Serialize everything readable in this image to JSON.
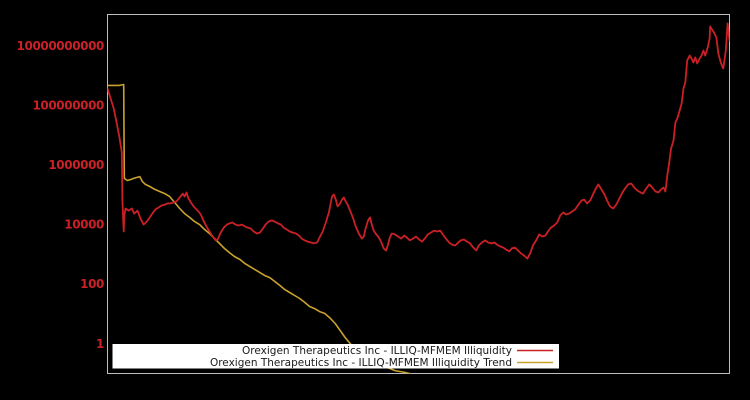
{
  "window": {
    "title": "",
    "background": "#000000"
  },
  "colors": {
    "background": "#000000",
    "plot_border": "#bdbdbd",
    "axis_label": "#cb2026",
    "illiquidity_line": "#cb2026",
    "trend_line": "#c9a22e",
    "legend_background": "#ffffff",
    "legend_text": "#1a1a1a"
  },
  "chart_data": {
    "type": "line",
    "title": "",
    "xlabel": "",
    "ylabel": "",
    "x_axis": {
      "tick_labels": [],
      "note": "no x-axis tick labels visible; x stored as fraction 0-1 of plot width"
    },
    "y_axis": {
      "scale": "log10",
      "tick_labels": [
        "10000000000",
        "100000000",
        "1000000",
        "10000",
        "100",
        "1"
      ],
      "tick_exponents": [
        10,
        8,
        6,
        4,
        2,
        0
      ],
      "range_log10": [
        -1.02,
        11.03
      ]
    },
    "legend": {
      "position": "bottom-center",
      "background": "#ffffff"
    },
    "point_format": "[x_fraction_0to1, log10_of_value]",
    "series": [
      {
        "name": "Orexigen Therapeutics Inc - ILLIQ-MFMEM Illiquidity",
        "color": "#cb2026",
        "width": 1.8,
        "points": [
          [
            0,
            8.56
          ],
          [
            0.005,
            8.22
          ],
          [
            0.01,
            7.89
          ],
          [
            0.014,
            7.48
          ],
          [
            0.019,
            6.95
          ],
          [
            0.023,
            6.41
          ],
          [
            0.024,
            4.8
          ],
          [
            0.026,
            3.76
          ],
          [
            0.027,
            4.3
          ],
          [
            0.029,
            4.53
          ],
          [
            0.034,
            4.46
          ],
          [
            0.039,
            4.53
          ],
          [
            0.043,
            4.36
          ],
          [
            0.048,
            4.46
          ],
          [
            0.053,
            4.19
          ],
          [
            0.058,
            3.99
          ],
          [
            0.063,
            4.09
          ],
          [
            0.068,
            4.23
          ],
          [
            0.072,
            4.36
          ],
          [
            0.077,
            4.5
          ],
          [
            0.082,
            4.56
          ],
          [
            0.087,
            4.63
          ],
          [
            0.092,
            4.66
          ],
          [
            0.097,
            4.7
          ],
          [
            0.101,
            4.7
          ],
          [
            0.106,
            4.73
          ],
          [
            0.111,
            4.77
          ],
          [
            0.116,
            4.9
          ],
          [
            0.121,
            5.03
          ],
          [
            0.124,
            4.93
          ],
          [
            0.127,
            5.07
          ],
          [
            0.13,
            4.87
          ],
          [
            0.135,
            4.7
          ],
          [
            0.14,
            4.56
          ],
          [
            0.145,
            4.46
          ],
          [
            0.15,
            4.33
          ],
          [
            0.155,
            4.09
          ],
          [
            0.159,
            3.93
          ],
          [
            0.164,
            3.76
          ],
          [
            0.169,
            3.59
          ],
          [
            0.174,
            3.46
          ],
          [
            0.177,
            3.49
          ],
          [
            0.182,
            3.72
          ],
          [
            0.187,
            3.89
          ],
          [
            0.192,
            3.99
          ],
          [
            0.196,
            4.03
          ],
          [
            0.201,
            4.06
          ],
          [
            0.206,
            3.99
          ],
          [
            0.211,
            3.96
          ],
          [
            0.216,
            3.99
          ],
          [
            0.221,
            3.93
          ],
          [
            0.225,
            3.89
          ],
          [
            0.23,
            3.86
          ],
          [
            0.235,
            3.76
          ],
          [
            0.24,
            3.69
          ],
          [
            0.245,
            3.72
          ],
          [
            0.25,
            3.86
          ],
          [
            0.254,
            3.99
          ],
          [
            0.259,
            4.09
          ],
          [
            0.264,
            4.13
          ],
          [
            0.269,
            4.09
          ],
          [
            0.274,
            4.03
          ],
          [
            0.279,
            3.99
          ],
          [
            0.283,
            3.89
          ],
          [
            0.288,
            3.83
          ],
          [
            0.293,
            3.76
          ],
          [
            0.298,
            3.72
          ],
          [
            0.303,
            3.69
          ],
          [
            0.308,
            3.62
          ],
          [
            0.312,
            3.52
          ],
          [
            0.317,
            3.46
          ],
          [
            0.322,
            3.42
          ],
          [
            0.327,
            3.39
          ],
          [
            0.332,
            3.36
          ],
          [
            0.337,
            3.39
          ],
          [
            0.341,
            3.56
          ],
          [
            0.346,
            3.76
          ],
          [
            0.351,
            4.06
          ],
          [
            0.356,
            4.4
          ],
          [
            0.361,
            4.93
          ],
          [
            0.364,
            5.0
          ],
          [
            0.367,
            4.83
          ],
          [
            0.37,
            4.6
          ],
          [
            0.374,
            4.7
          ],
          [
            0.377,
            4.83
          ],
          [
            0.38,
            4.9
          ],
          [
            0.383,
            4.77
          ],
          [
            0.386,
            4.66
          ],
          [
            0.39,
            4.46
          ],
          [
            0.395,
            4.19
          ],
          [
            0.399,
            3.93
          ],
          [
            0.404,
            3.69
          ],
          [
            0.409,
            3.52
          ],
          [
            0.412,
            3.59
          ],
          [
            0.415,
            3.86
          ],
          [
            0.419,
            4.13
          ],
          [
            0.422,
            4.23
          ],
          [
            0.425,
            3.99
          ],
          [
            0.428,
            3.79
          ],
          [
            0.432,
            3.66
          ],
          [
            0.435,
            3.59
          ],
          [
            0.438,
            3.49
          ],
          [
            0.441,
            3.36
          ],
          [
            0.444,
            3.19
          ],
          [
            0.448,
            3.12
          ],
          [
            0.451,
            3.32
          ],
          [
            0.454,
            3.56
          ],
          [
            0.457,
            3.69
          ],
          [
            0.462,
            3.66
          ],
          [
            0.467,
            3.59
          ],
          [
            0.472,
            3.52
          ],
          [
            0.477,
            3.62
          ],
          [
            0.481,
            3.56
          ],
          [
            0.486,
            3.46
          ],
          [
            0.491,
            3.52
          ],
          [
            0.496,
            3.59
          ],
          [
            0.501,
            3.49
          ],
          [
            0.506,
            3.42
          ],
          [
            0.51,
            3.52
          ],
          [
            0.515,
            3.66
          ],
          [
            0.52,
            3.72
          ],
          [
            0.525,
            3.79
          ],
          [
            0.53,
            3.76
          ],
          [
            0.535,
            3.79
          ],
          [
            0.539,
            3.66
          ],
          [
            0.544,
            3.52
          ],
          [
            0.549,
            3.39
          ],
          [
            0.554,
            3.32
          ],
          [
            0.559,
            3.29
          ],
          [
            0.564,
            3.39
          ],
          [
            0.568,
            3.46
          ],
          [
            0.573,
            3.49
          ],
          [
            0.578,
            3.42
          ],
          [
            0.583,
            3.36
          ],
          [
            0.588,
            3.22
          ],
          [
            0.593,
            3.12
          ],
          [
            0.597,
            3.29
          ],
          [
            0.602,
            3.39
          ],
          [
            0.607,
            3.46
          ],
          [
            0.612,
            3.39
          ],
          [
            0.617,
            3.36
          ],
          [
            0.622,
            3.39
          ],
          [
            0.626,
            3.32
          ],
          [
            0.631,
            3.26
          ],
          [
            0.636,
            3.22
          ],
          [
            0.641,
            3.15
          ],
          [
            0.646,
            3.09
          ],
          [
            0.65,
            3.19
          ],
          [
            0.655,
            3.22
          ],
          [
            0.66,
            3.12
          ],
          [
            0.665,
            3.02
          ],
          [
            0.67,
            2.95
          ],
          [
            0.675,
            2.85
          ],
          [
            0.68,
            3.05
          ],
          [
            0.684,
            3.29
          ],
          [
            0.689,
            3.46
          ],
          [
            0.694,
            3.66
          ],
          [
            0.699,
            3.59
          ],
          [
            0.704,
            3.62
          ],
          [
            0.708,
            3.76
          ],
          [
            0.713,
            3.89
          ],
          [
            0.718,
            3.96
          ],
          [
            0.723,
            4.06
          ],
          [
            0.728,
            4.3
          ],
          [
            0.733,
            4.4
          ],
          [
            0.737,
            4.33
          ],
          [
            0.742,
            4.36
          ],
          [
            0.747,
            4.43
          ],
          [
            0.752,
            4.5
          ],
          [
            0.757,
            4.66
          ],
          [
            0.762,
            4.8
          ],
          [
            0.766,
            4.83
          ],
          [
            0.771,
            4.7
          ],
          [
            0.776,
            4.8
          ],
          [
            0.781,
            5.03
          ],
          [
            0.786,
            5.23
          ],
          [
            0.789,
            5.34
          ],
          [
            0.794,
            5.17
          ],
          [
            0.799,
            5.0
          ],
          [
            0.803,
            4.8
          ],
          [
            0.808,
            4.6
          ],
          [
            0.813,
            4.53
          ],
          [
            0.818,
            4.66
          ],
          [
            0.823,
            4.87
          ],
          [
            0.828,
            5.07
          ],
          [
            0.832,
            5.2
          ],
          [
            0.837,
            5.34
          ],
          [
            0.842,
            5.37
          ],
          [
            0.847,
            5.23
          ],
          [
            0.852,
            5.13
          ],
          [
            0.857,
            5.07
          ],
          [
            0.861,
            5.03
          ],
          [
            0.866,
            5.2
          ],
          [
            0.871,
            5.34
          ],
          [
            0.876,
            5.23
          ],
          [
            0.881,
            5.1
          ],
          [
            0.886,
            5.07
          ],
          [
            0.89,
            5.17
          ],
          [
            0.894,
            5.23
          ],
          [
            0.897,
            5.1
          ],
          [
            0.9,
            5.64
          ],
          [
            0.903,
            6.07
          ],
          [
            0.906,
            6.54
          ],
          [
            0.91,
            6.81
          ],
          [
            0.913,
            7.42
          ],
          [
            0.916,
            7.55
          ],
          [
            0.919,
            7.75
          ],
          [
            0.923,
            8.05
          ],
          [
            0.926,
            8.56
          ],
          [
            0.929,
            8.76
          ],
          [
            0.932,
            9.5
          ],
          [
            0.936,
            9.66
          ],
          [
            0.939,
            9.56
          ],
          [
            0.942,
            9.43
          ],
          [
            0.945,
            9.6
          ],
          [
            0.948,
            9.4
          ],
          [
            0.952,
            9.56
          ],
          [
            0.955,
            9.66
          ],
          [
            0.958,
            9.83
          ],
          [
            0.961,
            9.66
          ],
          [
            0.965,
            9.93
          ],
          [
            0.968,
            10.23
          ],
          [
            0.969,
            10.64
          ],
          [
            0.973,
            10.5
          ],
          [
            0.976,
            10.4
          ],
          [
            0.979,
            10.27
          ],
          [
            0.982,
            9.73
          ],
          [
            0.986,
            9.43
          ],
          [
            0.989,
            9.26
          ],
          [
            0.99,
            9.23
          ],
          [
            0.994,
            9.83
          ],
          [
            0.997,
            10.74
          ],
          [
            1.0,
            10.17
          ]
        ]
      },
      {
        "name": "Orexigen Therapeutics Inc - ILLIQ-MFMEM Illiquidity Trend",
        "color": "#c9a22e",
        "width": 1.6,
        "points": [
          [
            0,
            8.66
          ],
          [
            0.01,
            8.66
          ],
          [
            0.019,
            8.66
          ],
          [
            0.026,
            8.69
          ],
          [
            0.027,
            5.54
          ],
          [
            0.032,
            5.47
          ],
          [
            0.037,
            5.5
          ],
          [
            0.042,
            5.54
          ],
          [
            0.047,
            5.57
          ],
          [
            0.052,
            5.6
          ],
          [
            0.056,
            5.44
          ],
          [
            0.061,
            5.34
          ],
          [
            0.068,
            5.27
          ],
          [
            0.076,
            5.17
          ],
          [
            0.084,
            5.1
          ],
          [
            0.092,
            5.03
          ],
          [
            0.1,
            4.93
          ],
          [
            0.108,
            4.73
          ],
          [
            0.116,
            4.53
          ],
          [
            0.124,
            4.36
          ],
          [
            0.132,
            4.23
          ],
          [
            0.14,
            4.09
          ],
          [
            0.148,
            3.99
          ],
          [
            0.156,
            3.83
          ],
          [
            0.164,
            3.69
          ],
          [
            0.172,
            3.52
          ],
          [
            0.18,
            3.36
          ],
          [
            0.188,
            3.19
          ],
          [
            0.196,
            3.05
          ],
          [
            0.204,
            2.92
          ],
          [
            0.213,
            2.82
          ],
          [
            0.221,
            2.68
          ],
          [
            0.229,
            2.58
          ],
          [
            0.237,
            2.48
          ],
          [
            0.245,
            2.38
          ],
          [
            0.253,
            2.28
          ],
          [
            0.261,
            2.21
          ],
          [
            0.269,
            2.08
          ],
          [
            0.277,
            1.95
          ],
          [
            0.285,
            1.81
          ],
          [
            0.293,
            1.71
          ],
          [
            0.301,
            1.61
          ],
          [
            0.309,
            1.51
          ],
          [
            0.317,
            1.38
          ],
          [
            0.325,
            1.24
          ],
          [
            0.333,
            1.17
          ],
          [
            0.341,
            1.07
          ],
          [
            0.349,
            1.01
          ],
          [
            0.357,
            0.87
          ],
          [
            0.366,
            0.67
          ],
          [
            0.374,
            0.44
          ],
          [
            0.382,
            0.2
          ],
          [
            0.39,
            0.0
          ],
          [
            0.398,
            -0.17
          ],
          [
            0.406,
            -0.3
          ],
          [
            0.414,
            -0.44
          ],
          [
            0.422,
            -0.54
          ],
          [
            0.43,
            -0.64
          ],
          [
            0.438,
            -0.7
          ],
          [
            0.446,
            -0.77
          ],
          [
            0.454,
            -0.84
          ],
          [
            0.462,
            -0.91
          ],
          [
            0.47,
            -0.94
          ],
          [
            0.478,
            -0.97
          ],
          [
            0.486,
            -1.01
          ]
        ]
      }
    ]
  }
}
